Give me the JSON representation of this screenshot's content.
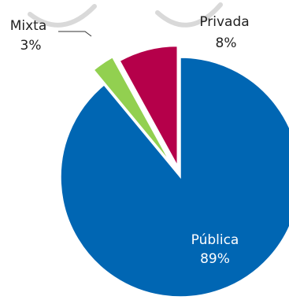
{
  "chart_data": {
    "type": "pie",
    "exploded": true,
    "slices": [
      {
        "label": "Pública",
        "value": 89,
        "value_label": "89%",
        "color": "#0066b3",
        "label_color": "#ffffff"
      },
      {
        "label": "Mixta",
        "value": 3,
        "value_label": "3%",
        "color": "#92d050",
        "label_color": "#222222"
      },
      {
        "label": "Privada",
        "value": 8,
        "value_label": "8%",
        "color": "#b5004a",
        "label_color": "#222222"
      }
    ]
  },
  "decor": {
    "watermark_color": "#d9d9d9"
  }
}
